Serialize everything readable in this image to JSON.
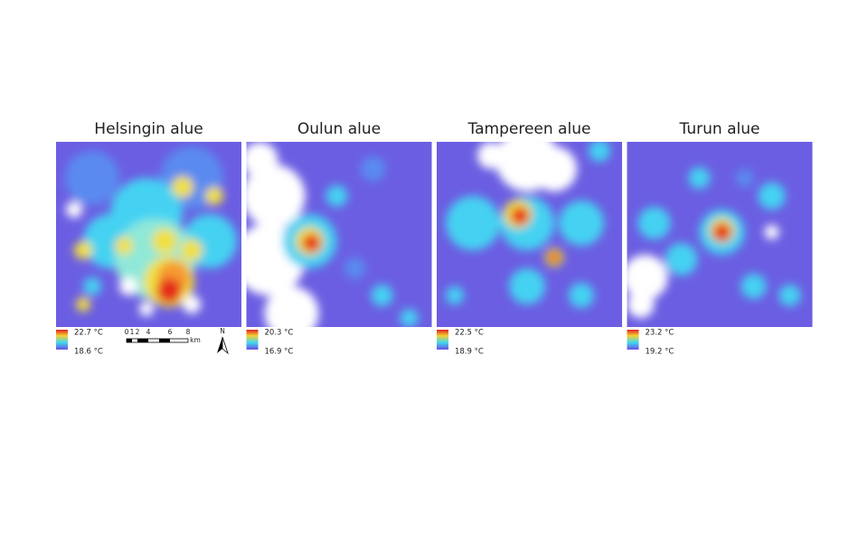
{
  "panels": [
    {
      "title": "Helsingin alue",
      "legend_max": "22.7 °C",
      "legend_min": "18.6 °C"
    },
    {
      "title": "Oulun alue",
      "legend_max": "20.3 °C",
      "legend_min": "16.9 °C"
    },
    {
      "title": "Tampereen alue",
      "legend_max": "22.5 °C",
      "legend_min": "18.9 °C"
    },
    {
      "title": "Turun alue",
      "legend_max": "23.2 °C",
      "legend_min": "19.2 °C"
    }
  ],
  "scale_bar": {
    "ticks": [
      "0",
      "1",
      "2",
      "4",
      "6",
      "8"
    ],
    "unit": "km",
    "north": "N"
  }
}
